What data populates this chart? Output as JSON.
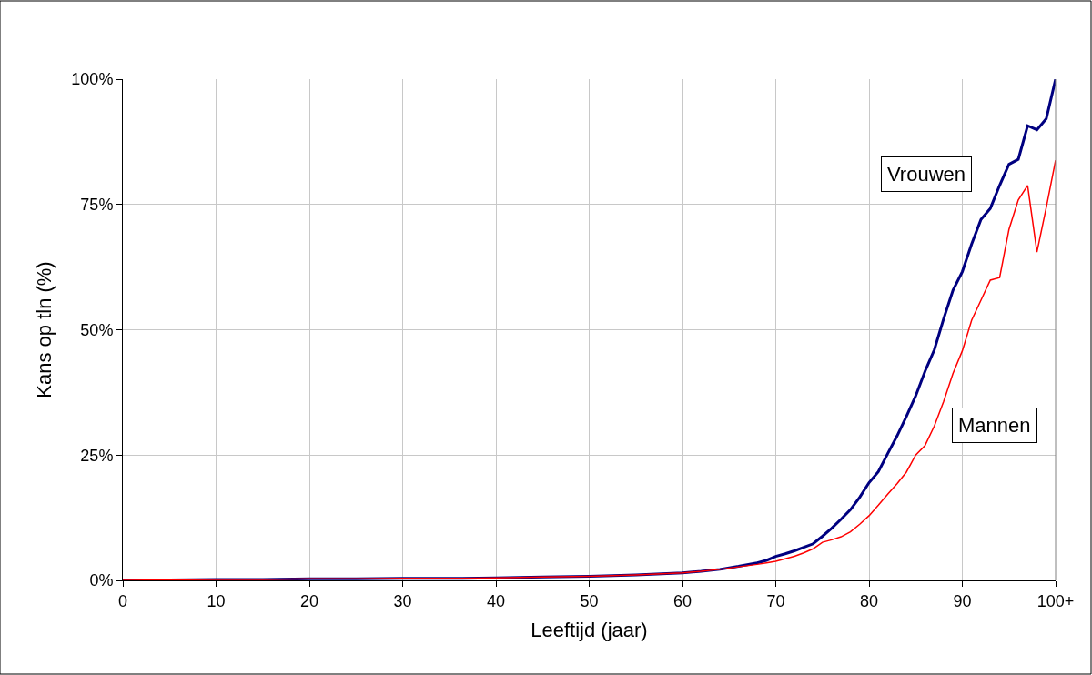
{
  "chart_data": {
    "type": "line",
    "xlabel": "Leeftijd (jaar)",
    "ylabel": "Kans op tln (%)",
    "xlim": [
      0,
      100
    ],
    "xticks": [
      0,
      10,
      20,
      30,
      40,
      50,
      60,
      70,
      80,
      90,
      {
        "value": 100,
        "label": "100+"
      }
    ],
    "ylim": [
      0,
      100
    ],
    "yticks": [
      {
        "value": 0,
        "label": "0%"
      },
      {
        "value": 25,
        "label": "25%"
      },
      {
        "value": 50,
        "label": "50%"
      },
      {
        "value": 75,
        "label": "75%"
      },
      {
        "value": 100,
        "label": "100%"
      }
    ],
    "grid": true,
    "legend": false,
    "marker": "none",
    "line_style": "solid",
    "series": [
      {
        "name": "Vrouwen",
        "color": "#000080",
        "x": [
          0,
          5,
          10,
          15,
          20,
          25,
          30,
          35,
          40,
          45,
          50,
          55,
          60,
          62,
          64,
          66,
          68,
          69,
          70,
          71,
          72,
          73,
          74,
          75,
          76,
          77,
          78,
          79,
          80,
          81,
          82,
          83,
          84,
          85,
          86,
          87,
          88,
          89,
          90,
          91,
          92,
          93,
          94,
          95,
          96,
          97,
          98,
          99,
          100
        ],
        "values": [
          0,
          0.1,
          0.2,
          0.2,
          0.3,
          0.3,
          0.4,
          0.4,
          0.5,
          0.7,
          0.8,
          1.1,
          1.5,
          1.8,
          2.2,
          2.8,
          3.5,
          4.0,
          4.8,
          5.3,
          5.9,
          6.6,
          7.3,
          8.8,
          10.4,
          12.2,
          14.1,
          16.6,
          19.5,
          21.7,
          25.3,
          28.8,
          32.7,
          36.8,
          41.7,
          46.0,
          52.2,
          57.9,
          61.6,
          67.1,
          72.0,
          74.2,
          78.8,
          83.0,
          84.0,
          90.7,
          89.9,
          92.1,
          100
        ]
      },
      {
        "name": "Mannen",
        "color": "#ff0000",
        "x": [
          0,
          5,
          10,
          15,
          20,
          25,
          30,
          35,
          40,
          45,
          50,
          55,
          60,
          62,
          64,
          66,
          68,
          69,
          70,
          71,
          72,
          73,
          74,
          75,
          76,
          77,
          78,
          79,
          80,
          81,
          82,
          83,
          84,
          85,
          86,
          87,
          88,
          89,
          90,
          91,
          92,
          93,
          94,
          95,
          96,
          97,
          98,
          99,
          100
        ],
        "values": [
          0,
          0.1,
          0.2,
          0.2,
          0.3,
          0.3,
          0.4,
          0.4,
          0.5,
          0.7,
          0.8,
          1.1,
          1.5,
          1.8,
          2.2,
          2.7,
          3.2,
          3.5,
          3.8,
          4.3,
          4.8,
          5.5,
          6.3,
          7.6,
          8.1,
          8.7,
          9.7,
          11.2,
          12.9,
          15.0,
          17.2,
          19.3,
          21.6,
          25.0,
          26.9,
          30.8,
          35.7,
          41.3,
          45.8,
          51.9,
          55.9,
          59.9,
          60.4,
          70.0,
          75.9,
          78.8,
          65.5,
          74.4,
          83.8
        ]
      }
    ]
  }
}
